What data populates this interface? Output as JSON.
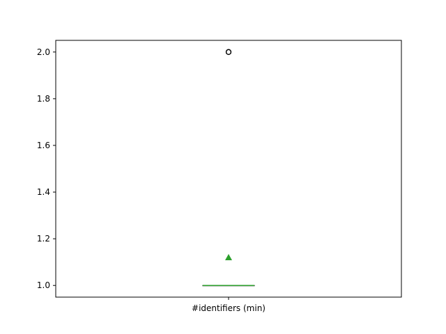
{
  "chart_data": {
    "type": "box",
    "categories": [
      "#identifiers (min)"
    ],
    "ylim": [
      0.95,
      2.05
    ],
    "yticks": [
      1.0,
      1.2,
      1.4,
      1.6,
      1.8,
      2.0
    ],
    "ytick_labels": [
      "1.0",
      "1.2",
      "1.4",
      "1.6",
      "1.8",
      "2.0"
    ],
    "grid": false,
    "boxes": [
      {
        "category": "#identifiers (min)",
        "whisker_low": 1.0,
        "q1": 1.0,
        "median": 1.0,
        "q3": 1.0,
        "whisker_high": 1.0,
        "mean": 1.12,
        "outliers": [
          2.0,
          2.0,
          2.0
        ]
      }
    ],
    "colors": {
      "median": "#2ca02c",
      "mean_marker": "#2ca02c",
      "box": "#000000",
      "outlier": "#000000"
    }
  }
}
